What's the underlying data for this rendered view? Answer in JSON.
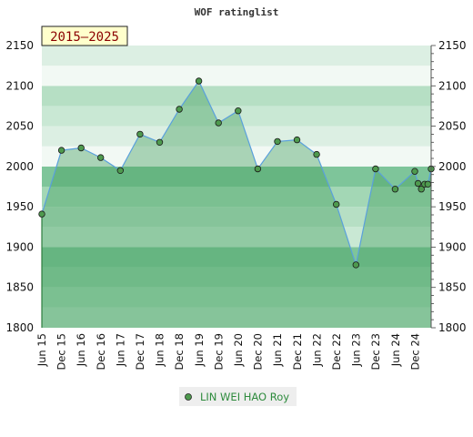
{
  "chart_data": {
    "type": "area",
    "title": "WOF ratinglist",
    "period_label": "2015–2025",
    "xlabel": "",
    "ylabel": "",
    "ylim": [
      1800,
      2150
    ],
    "y_ticks": [
      1800,
      1850,
      1900,
      1950,
      2000,
      2050,
      2100,
      2150
    ],
    "x_tick_labels": [
      "Jun 15",
      "Dec 15",
      "Jun 16",
      "Dec 16",
      "Jun 17",
      "Dec 17",
      "Jun 18",
      "Dec 18",
      "Jun 19",
      "Dec 19",
      "Jun 20",
      "Dec 20",
      "Jun 21",
      "Dec 21",
      "Jun 22",
      "Dec 22",
      "Jun 23",
      "Dec 23",
      "Jun 24",
      "Dec 24"
    ],
    "grid": true,
    "legend_position": "bottom-center",
    "series": [
      {
        "name": "LIN WEI HAO Roy",
        "color": "#5aa0dc",
        "points": [
          {
            "x": "2015-06",
            "y": 1941
          },
          {
            "x": "2015-12",
            "y": 2020
          },
          {
            "x": "2016-06",
            "y": 2023
          },
          {
            "x": "2016-12",
            "y": 2011
          },
          {
            "x": "2017-06",
            "y": 1995
          },
          {
            "x": "2017-12",
            "y": 2040
          },
          {
            "x": "2018-06",
            "y": 2030
          },
          {
            "x": "2018-12",
            "y": 2071
          },
          {
            "x": "2019-06",
            "y": 2106
          },
          {
            "x": "2019-12",
            "y": 2054
          },
          {
            "x": "2020-06",
            "y": 2069
          },
          {
            "x": "2020-12",
            "y": 1997
          },
          {
            "x": "2021-06",
            "y": 2031
          },
          {
            "x": "2021-12",
            "y": 2033
          },
          {
            "x": "2022-06",
            "y": 2015
          },
          {
            "x": "2022-12",
            "y": 1953
          },
          {
            "x": "2023-06",
            "y": 1878
          },
          {
            "x": "2023-12",
            "y": 1997
          },
          {
            "x": "2024-06",
            "y": 1972
          },
          {
            "x": "2024-12",
            "y": 1994
          },
          {
            "x": "2025-01",
            "y": 1979
          },
          {
            "x": "2025-02",
            "y": 1972
          },
          {
            "x": "2025-03",
            "y": 1978
          },
          {
            "x": "2025-04",
            "y": 1978
          },
          {
            "x": "2025-05",
            "y": 1997
          }
        ]
      }
    ]
  }
}
